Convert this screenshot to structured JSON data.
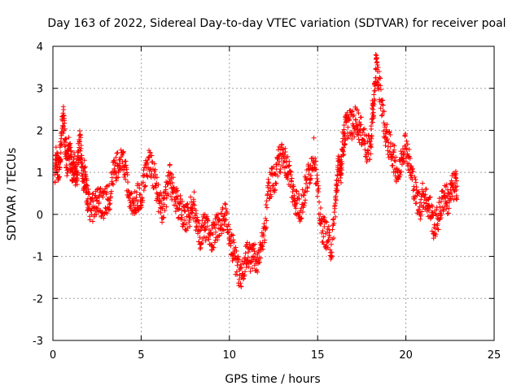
{
  "chart_data": {
    "type": "scatter",
    "title": "Day 163 of 2022, Sidereal Day-to-day VTEC variation (SDTVAR) for receiver poal",
    "xlabel": "GPS time / hours",
    "ylabel": "SDTVAR / TECUs",
    "xlim": [
      0,
      25
    ],
    "ylim": [
      -3,
      4
    ],
    "xticks": [
      0,
      5,
      10,
      15,
      20,
      25
    ],
    "yticks": [
      -3,
      -2,
      -1,
      0,
      1,
      2,
      3,
      4
    ],
    "grid": true,
    "marker": "+",
    "series": [
      {
        "name": "SDTVAR",
        "color": "#ff0000",
        "x": [
          0.1,
          0.2,
          0.3,
          0.4,
          0.5,
          0.6,
          0.7,
          0.8,
          0.9,
          1.0,
          1.1,
          1.2,
          1.3,
          1.4,
          1.5,
          1.6,
          1.7,
          1.8,
          1.9,
          2.0,
          2.2,
          2.4,
          2.6,
          2.8,
          3.0,
          3.2,
          3.4,
          3.6,
          3.8,
          4.0,
          4.2,
          4.4,
          4.6,
          4.8,
          5.0,
          5.2,
          5.4,
          5.6,
          5.8,
          6.0,
          6.2,
          6.4,
          6.6,
          6.8,
          7.0,
          7.2,
          7.4,
          7.6,
          7.8,
          8.0,
          8.2,
          8.4,
          8.6,
          8.8,
          9.0,
          9.2,
          9.4,
          9.6,
          9.8,
          10.0,
          10.2,
          10.4,
          10.6,
          10.8,
          11.0,
          11.2,
          11.4,
          11.6,
          11.8,
          12.0,
          12.2,
          12.4,
          12.6,
          12.8,
          13.0,
          13.2,
          13.4,
          13.6,
          13.8,
          14.0,
          14.2,
          14.4,
          14.6,
          14.8,
          15.0,
          15.2,
          15.4,
          15.6,
          15.8,
          16.0,
          16.1,
          16.2,
          16.3,
          16.4,
          16.5,
          16.6,
          16.8,
          17.0,
          17.2,
          17.4,
          17.6,
          17.8,
          18.0,
          18.1,
          18.2,
          18.3,
          18.4,
          18.6,
          18.8,
          19.0,
          19.2,
          19.4,
          19.6,
          19.8,
          20.0,
          20.2,
          20.4,
          20.6,
          20.8,
          21.0,
          21.2,
          21.4,
          21.6,
          21.8,
          22.0,
          22.2,
          22.4,
          22.6,
          22.8
        ],
        "y": [
          0.9,
          1.4,
          1.1,
          1.3,
          1.9,
          2.3,
          1.6,
          1.2,
          1.5,
          1.3,
          1.0,
          1.2,
          0.9,
          1.1,
          1.8,
          1.4,
          0.8,
          1.0,
          0.6,
          0.3,
          0.1,
          0.3,
          0.4,
          0.2,
          0.3,
          0.4,
          0.9,
          1.1,
          1.3,
          1.2,
          0.8,
          0.2,
          0.3,
          0.4,
          0.3,
          0.9,
          1.2,
          1.1,
          0.8,
          0.3,
          0.1,
          0.4,
          0.9,
          0.6,
          0.3,
          0.2,
          0.0,
          -0.1,
          0.1,
          0.2,
          -0.4,
          -0.5,
          -0.2,
          -0.5,
          -0.6,
          -0.4,
          -0.2,
          -0.1,
          0.0,
          -0.5,
          -0.8,
          -1.2,
          -1.5,
          -1.2,
          -0.9,
          -1.1,
          -1.0,
          -1.1,
          -0.8,
          -0.3,
          0.5,
          0.8,
          0.9,
          1.3,
          1.4,
          1.2,
          1.0,
          0.5,
          0.3,
          0.1,
          0.4,
          0.8,
          1.1,
          1.5,
          0.5,
          -0.3,
          -0.4,
          -0.6,
          -0.8,
          0.2,
          0.8,
          1.2,
          0.9,
          1.6,
          1.8,
          2.1,
          2.2,
          2.1,
          2.3,
          2.0,
          1.9,
          1.5,
          1.6,
          2.4,
          2.6,
          3.6,
          3.3,
          2.8,
          2.0,
          1.7,
          1.5,
          1.2,
          0.9,
          1.5,
          1.7,
          1.2,
          0.8,
          0.4,
          0.2,
          0.5,
          0.3,
          0.1,
          -0.3,
          -0.1,
          0.2,
          0.5,
          0.3,
          0.6,
          0.7
        ]
      }
    ]
  }
}
